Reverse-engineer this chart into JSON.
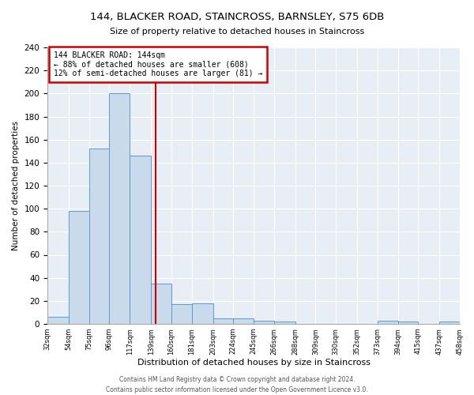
{
  "title": "144, BLACKER ROAD, STAINCROSS, BARNSLEY, S75 6DB",
  "subtitle": "Size of property relative to detached houses in Staincross",
  "xlabel": "Distribution of detached houses by size in Staincross",
  "ylabel": "Number of detached properties",
  "annotation_line1": "144 BLACKER ROAD: 144sqm",
  "annotation_line2": "← 88% of detached houses are smaller (608)",
  "annotation_line3": "12% of semi-detached houses are larger (81) →",
  "property_line_x": 144,
  "bar_color": "#c9daea",
  "bar_edge_color": "#5b9bd5",
  "annotation_box_color": "#ffffff",
  "annotation_box_edge_color": "#cc0000",
  "vline_color": "#cc0000",
  "bin_edges": [
    32,
    54,
    75,
    96,
    117,
    139,
    160,
    181,
    203,
    224,
    245,
    266,
    288,
    309,
    330,
    352,
    373,
    394,
    415,
    437,
    458
  ],
  "bar_heights": [
    6,
    98,
    152,
    200,
    146,
    35,
    17,
    18,
    5,
    5,
    3,
    2,
    0,
    0,
    0,
    0,
    3,
    2,
    0,
    2
  ],
  "ylim": [
    0,
    240
  ],
  "yticks": [
    0,
    20,
    40,
    60,
    80,
    100,
    120,
    140,
    160,
    180,
    200,
    220,
    240
  ],
  "footer_line1": "Contains HM Land Registry data © Crown copyright and database right 2024.",
  "footer_line2": "Contains public sector information licensed under the Open Government Licence v3.0.",
  "bg_color": "#ffffff",
  "plot_bg_color": "#e8eef5"
}
